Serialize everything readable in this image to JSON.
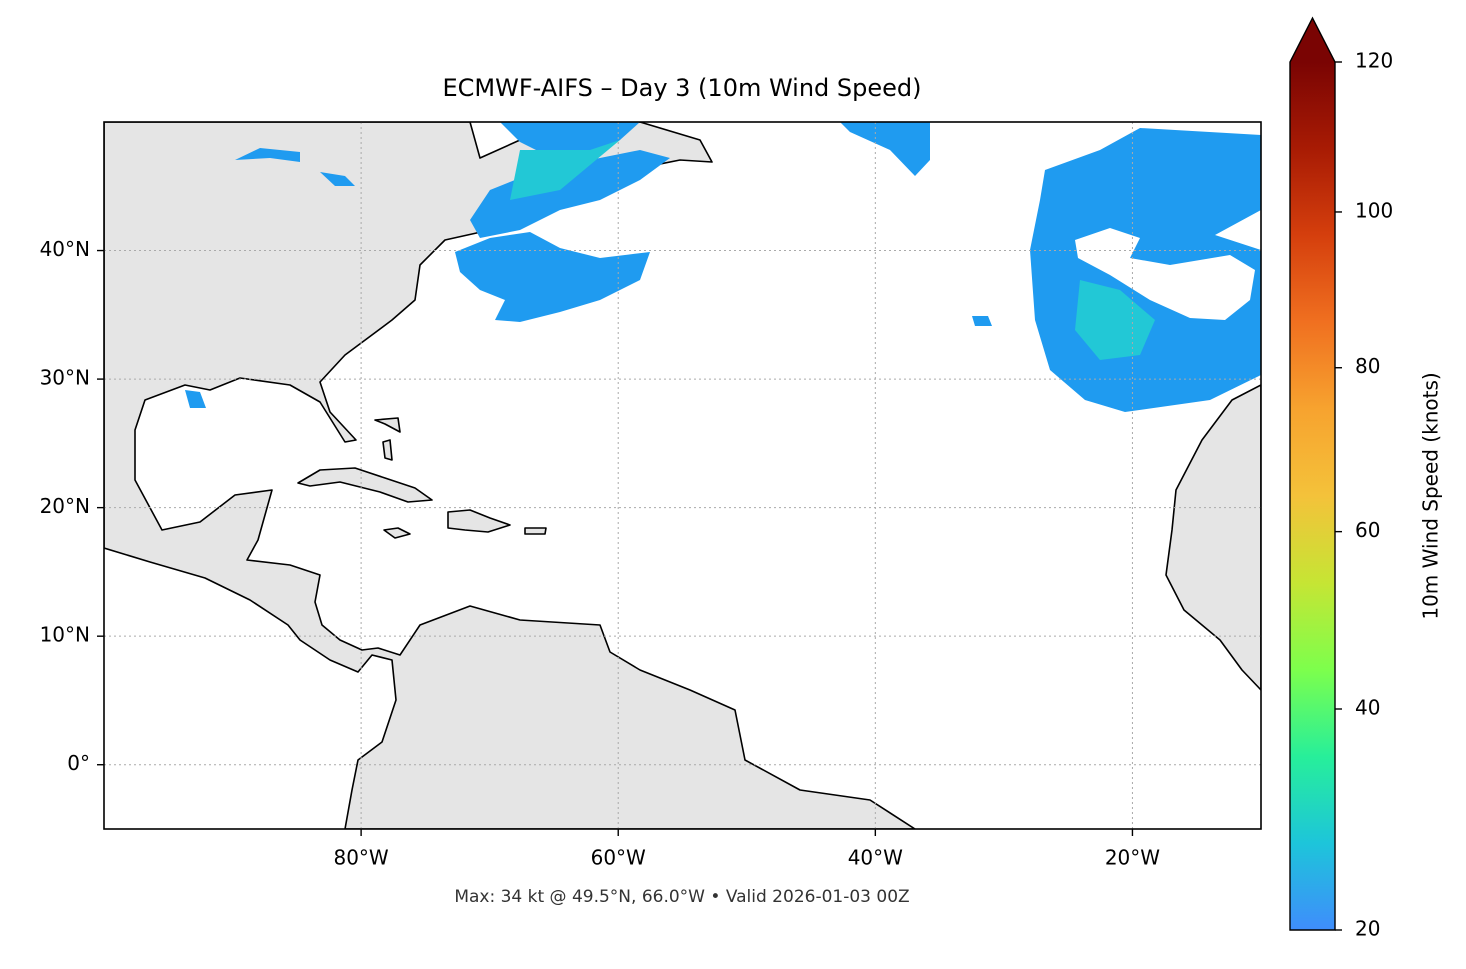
{
  "map": {
    "title": "ECMWF-AIFS – Day 3 (10m Wind Speed)",
    "footer": "Max: 34 kt @ 49.5°N, 66.0°W • Valid 2026-01-03 00Z",
    "xlim": [
      -100,
      -10
    ],
    "ylim": [
      -5,
      50
    ],
    "xticks": [
      {
        "value": -80,
        "label": "80°W"
      },
      {
        "value": -60,
        "label": "60°W"
      },
      {
        "value": -40,
        "label": "40°W"
      },
      {
        "value": -20,
        "label": "20°W"
      }
    ],
    "yticks": [
      {
        "value": 0,
        "label": "0°"
      },
      {
        "value": 10,
        "label": "10°N"
      },
      {
        "value": 20,
        "label": "20°N"
      },
      {
        "value": 30,
        "label": "30°N"
      },
      {
        "value": 40,
        "label": "40°N"
      }
    ],
    "grid": true,
    "colorbar": {
      "label": "10m Wind Speed (knots)",
      "lim": [
        20,
        120
      ],
      "ticks": [
        20,
        40,
        60,
        80,
        100,
        120
      ],
      "norm_gamma": 0.85,
      "extend": "max",
      "colors": [
        "#3f8dfc",
        "#1dc5da",
        "#27ef9a",
        "#7dff4c",
        "#c6e534",
        "#f4c23a",
        "#f7a32f",
        "#f07020",
        "#d53f0d",
        "#a81b04",
        "#7a0403"
      ]
    }
  }
}
